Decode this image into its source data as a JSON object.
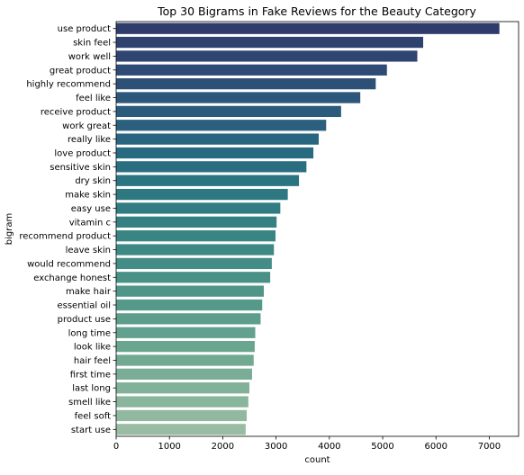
{
  "chart_data": {
    "type": "bar",
    "orientation": "horizontal",
    "title": "Top 30 Bigrams in Fake Reviews for the Beauty Category",
    "xlabel": "count",
    "ylabel": "bigram",
    "xlim": [
      0,
      7550
    ],
    "xticks": [
      0,
      1000,
      2000,
      3000,
      4000,
      5000,
      6000,
      7000
    ],
    "grid": false,
    "palette": "crest (dark blue to light green)",
    "categories": [
      "use product",
      "skin feel",
      "work well",
      "great product",
      "highly recommend",
      "feel like",
      "receive product",
      "work great",
      "really like",
      "love product",
      "sensitive skin",
      "dry skin",
      "make skin",
      "easy use",
      "vitamin c",
      "recommend product",
      "leave skin",
      "would recommend",
      "exchange honest",
      "make hair",
      "essential oil",
      "product use",
      "long time",
      "look like",
      "hair feel",
      "first time",
      "last long",
      "smell like",
      "feel soft",
      "start use"
    ],
    "values": [
      7190,
      5760,
      5650,
      5080,
      4870,
      4580,
      4220,
      3940,
      3800,
      3700,
      3570,
      3430,
      3220,
      3080,
      3010,
      2990,
      2960,
      2920,
      2890,
      2770,
      2740,
      2710,
      2610,
      2600,
      2580,
      2550,
      2500,
      2480,
      2450,
      2430
    ],
    "colors": [
      "#2e3c6c",
      "#2e416f",
      "#2e4572",
      "#2e4b75",
      "#2d5077",
      "#2c567a",
      "#2b5b7c",
      "#2a607e",
      "#29657f",
      "#286a80",
      "#296f81",
      "#2b7482",
      "#2e7882",
      "#317c83",
      "#358083",
      "#398584",
      "#3e8985",
      "#438d86",
      "#499187",
      "#4f9588",
      "#55998a",
      "#5c9d8c",
      "#63a18e",
      "#6aa590",
      "#71a993",
      "#79ad96",
      "#81b199",
      "#89b59c",
      "#91b9a0",
      "#99bda3"
    ]
  }
}
